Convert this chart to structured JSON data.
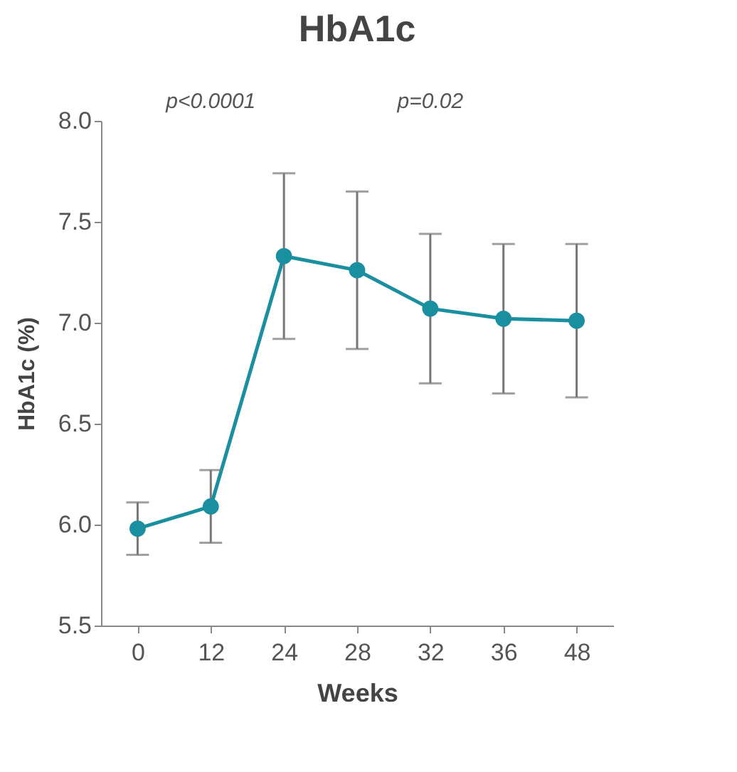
{
  "chart_data": {
    "type": "line",
    "title": "HbA1c",
    "xlabel": "Weeks",
    "ylabel": "HbA1c (%)",
    "categories": [
      "0",
      "12",
      "24",
      "28",
      "32",
      "36",
      "48"
    ],
    "series": [
      {
        "color": "#1a8fa0",
        "values": [
          5.98,
          6.09,
          7.33,
          7.26,
          7.07,
          7.02,
          7.01
        ],
        "errors": [
          0.13,
          0.18,
          0.41,
          0.39,
          0.37,
          0.37,
          0.38
        ]
      }
    ],
    "ylim": [
      5.5,
      8.0
    ],
    "yticks": [
      5.5,
      {
        "value": 6,
        "label": "6.0"
      },
      6.5,
      {
        "value": 7,
        "label": "7.0"
      },
      7.5,
      {
        "value": 8,
        "label": "8.0"
      }
    ],
    "marker": "circle",
    "line_style": "solid",
    "grid": false,
    "annotations": [
      "p<0.0001",
      "p=0.02"
    ]
  }
}
